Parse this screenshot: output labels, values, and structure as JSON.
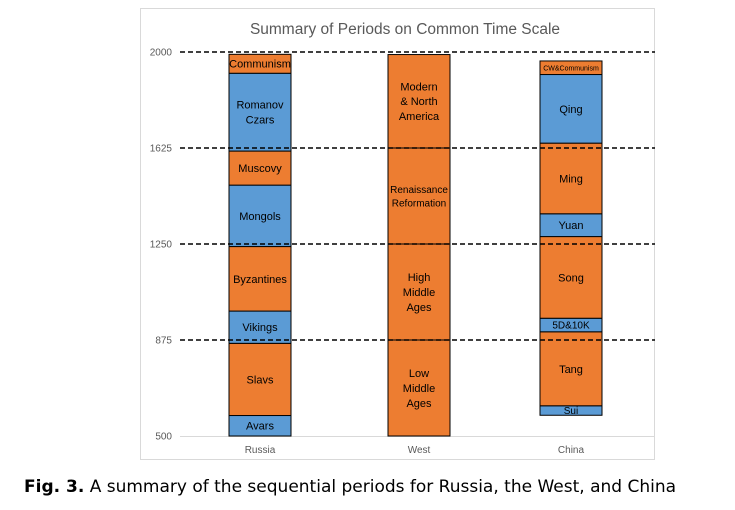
{
  "caption": {
    "label": "Fig. 3.",
    "text": "A summary of the sequential periods for Russia, the West, and China"
  },
  "colors": {
    "orange": "#ED7D31",
    "blue": "#5B9BD5",
    "border": "#000000",
    "gridline": "#000000",
    "axis_text": "#595959"
  },
  "chart_data": {
    "type": "bar",
    "stacked": true,
    "title": "Summary of Periods on Common Time Scale",
    "xlabel": "",
    "ylabel": "",
    "ylim": [
      500,
      2000
    ],
    "yticks": [
      500,
      875,
      1250,
      1625,
      2000
    ],
    "dashed_gridlines": [
      875,
      1250,
      1625,
      2000
    ],
    "categories": [
      "Russia",
      "West",
      "China"
    ],
    "series": [
      {
        "category": "Russia",
        "segments": [
          {
            "label": "Avars",
            "start": 500,
            "end": 580,
            "color": "blue"
          },
          {
            "label": "Slavs",
            "start": 580,
            "end": 862,
            "color": "orange"
          },
          {
            "label": "Vikings",
            "start": 862,
            "end": 988,
            "color": "blue"
          },
          {
            "label": "Byzantines",
            "start": 988,
            "end": 1240,
            "color": "orange"
          },
          {
            "label": "Mongols",
            "start": 1240,
            "end": 1480,
            "color": "blue"
          },
          {
            "label": "Muscovy",
            "start": 1480,
            "end": 1613,
            "color": "orange"
          },
          {
            "label": "Romanov Czars",
            "start": 1613,
            "end": 1917,
            "color": "blue"
          },
          {
            "label": "Communism",
            "start": 1917,
            "end": 1991,
            "color": "orange"
          }
        ]
      },
      {
        "category": "West",
        "segments": [
          {
            "label": "Low Middle Ages",
            "start": 500,
            "end": 875,
            "color": "orange"
          },
          {
            "label": "High Middle Ages",
            "start": 875,
            "end": 1250,
            "color": "orange"
          },
          {
            "label": "Renaissance Reformation",
            "start": 1250,
            "end": 1625,
            "color": "orange"
          },
          {
            "label": "Modern & North America",
            "start": 1625,
            "end": 1990,
            "color": "orange"
          }
        ]
      },
      {
        "category": "China",
        "segments": [
          {
            "label": "Sui",
            "start": 581,
            "end": 618,
            "color": "blue"
          },
          {
            "label": "Tang",
            "start": 618,
            "end": 907,
            "color": "orange"
          },
          {
            "label": "5D&10K",
            "start": 907,
            "end": 960,
            "color": "blue"
          },
          {
            "label": "Song",
            "start": 960,
            "end": 1279,
            "color": "orange"
          },
          {
            "label": "Yuan",
            "start": 1279,
            "end": 1368,
            "color": "blue"
          },
          {
            "label": "Ming",
            "start": 1368,
            "end": 1644,
            "color": "orange"
          },
          {
            "label": "Qing",
            "start": 1644,
            "end": 1912,
            "color": "blue"
          },
          {
            "label": "CW&Communism",
            "start": 1912,
            "end": 1965,
            "color": "orange"
          }
        ]
      }
    ]
  }
}
